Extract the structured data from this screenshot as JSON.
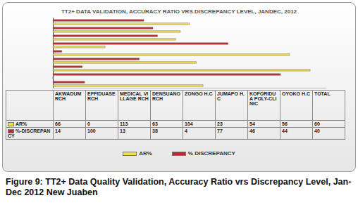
{
  "chart_data": {
    "type": "bar",
    "title": "TT2+ DATA VALIDATION, ACCURACY RATIO VRS DISCREPANCY LEVEL, JANDEC, 2012",
    "caption": "Figure 9: TT2+ Data Quality Validation, Accuracy Ratio vrs Discrepancy Level, Jan-Dec 2012 New Juaben",
    "orientation": "horizontal",
    "categories": [
      "AKWADUM RCH",
      "EFFIDUASE RCH",
      "MEDICAL VILLAGE RCH",
      "DENSUANO RCH",
      "ZONGO H.C",
      "JUMAPO H.C",
      "KOFORIDUA POLY-CLINIC",
      "OYOKO H.C",
      "TOTAL"
    ],
    "row_labels": [
      "AR%",
      "%-DISCREPANCY"
    ],
    "series": [
      {
        "name": "AR%",
        "color": "#f0e048",
        "values": [
          66,
          0,
          113,
          63,
          104,
          23,
          54,
          56,
          60
        ]
      },
      {
        "name": "% DISCREPANCY",
        "color": "#c0282d",
        "values": [
          14,
          100,
          13,
          38,
          4,
          77,
          46,
          44,
          40
        ]
      }
    ],
    "xlim": [
      0,
      120
    ],
    "tick_labels": false,
    "grid": false,
    "legend": "bottom",
    "data_labels": false
  }
}
